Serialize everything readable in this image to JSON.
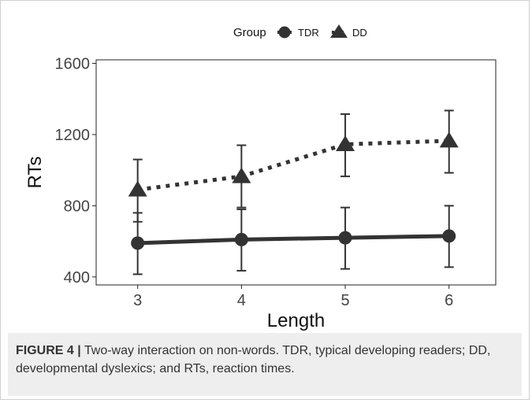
{
  "chart_data": {
    "type": "line",
    "xlabel": "Length",
    "ylabel": "RTs",
    "x": [
      3,
      4,
      5,
      6
    ],
    "xticks": [
      "3",
      "4",
      "5",
      "6"
    ],
    "yticks": [
      400,
      800,
      1200,
      1600
    ],
    "ylim": [
      355,
      1620
    ],
    "xlim": [
      2.6,
      6.45
    ],
    "grid": false,
    "legend": {
      "title": "Group",
      "placement": "top"
    },
    "series": [
      {
        "name": "TDR",
        "marker": "circle",
        "line": "solid",
        "color": "#333333",
        "values": [
          590,
          610,
          620,
          630
        ],
        "err_low": [
          415,
          435,
          445,
          455
        ],
        "err_high": [
          760,
          780,
          790,
          800
        ]
      },
      {
        "name": "DD",
        "marker": "triangle",
        "line": "dotted",
        "color": "#333333",
        "values": [
          890,
          965,
          1145,
          1165
        ],
        "err_low": [
          710,
          790,
          965,
          985
        ],
        "err_high": [
          1060,
          1140,
          1315,
          1335
        ]
      }
    ]
  },
  "caption": {
    "label": "FIGURE 4 |",
    "text": " Two-way interaction on non-words. TDR, typical developing readers; DD, developmental dyslexics; and RTs, reaction times."
  }
}
